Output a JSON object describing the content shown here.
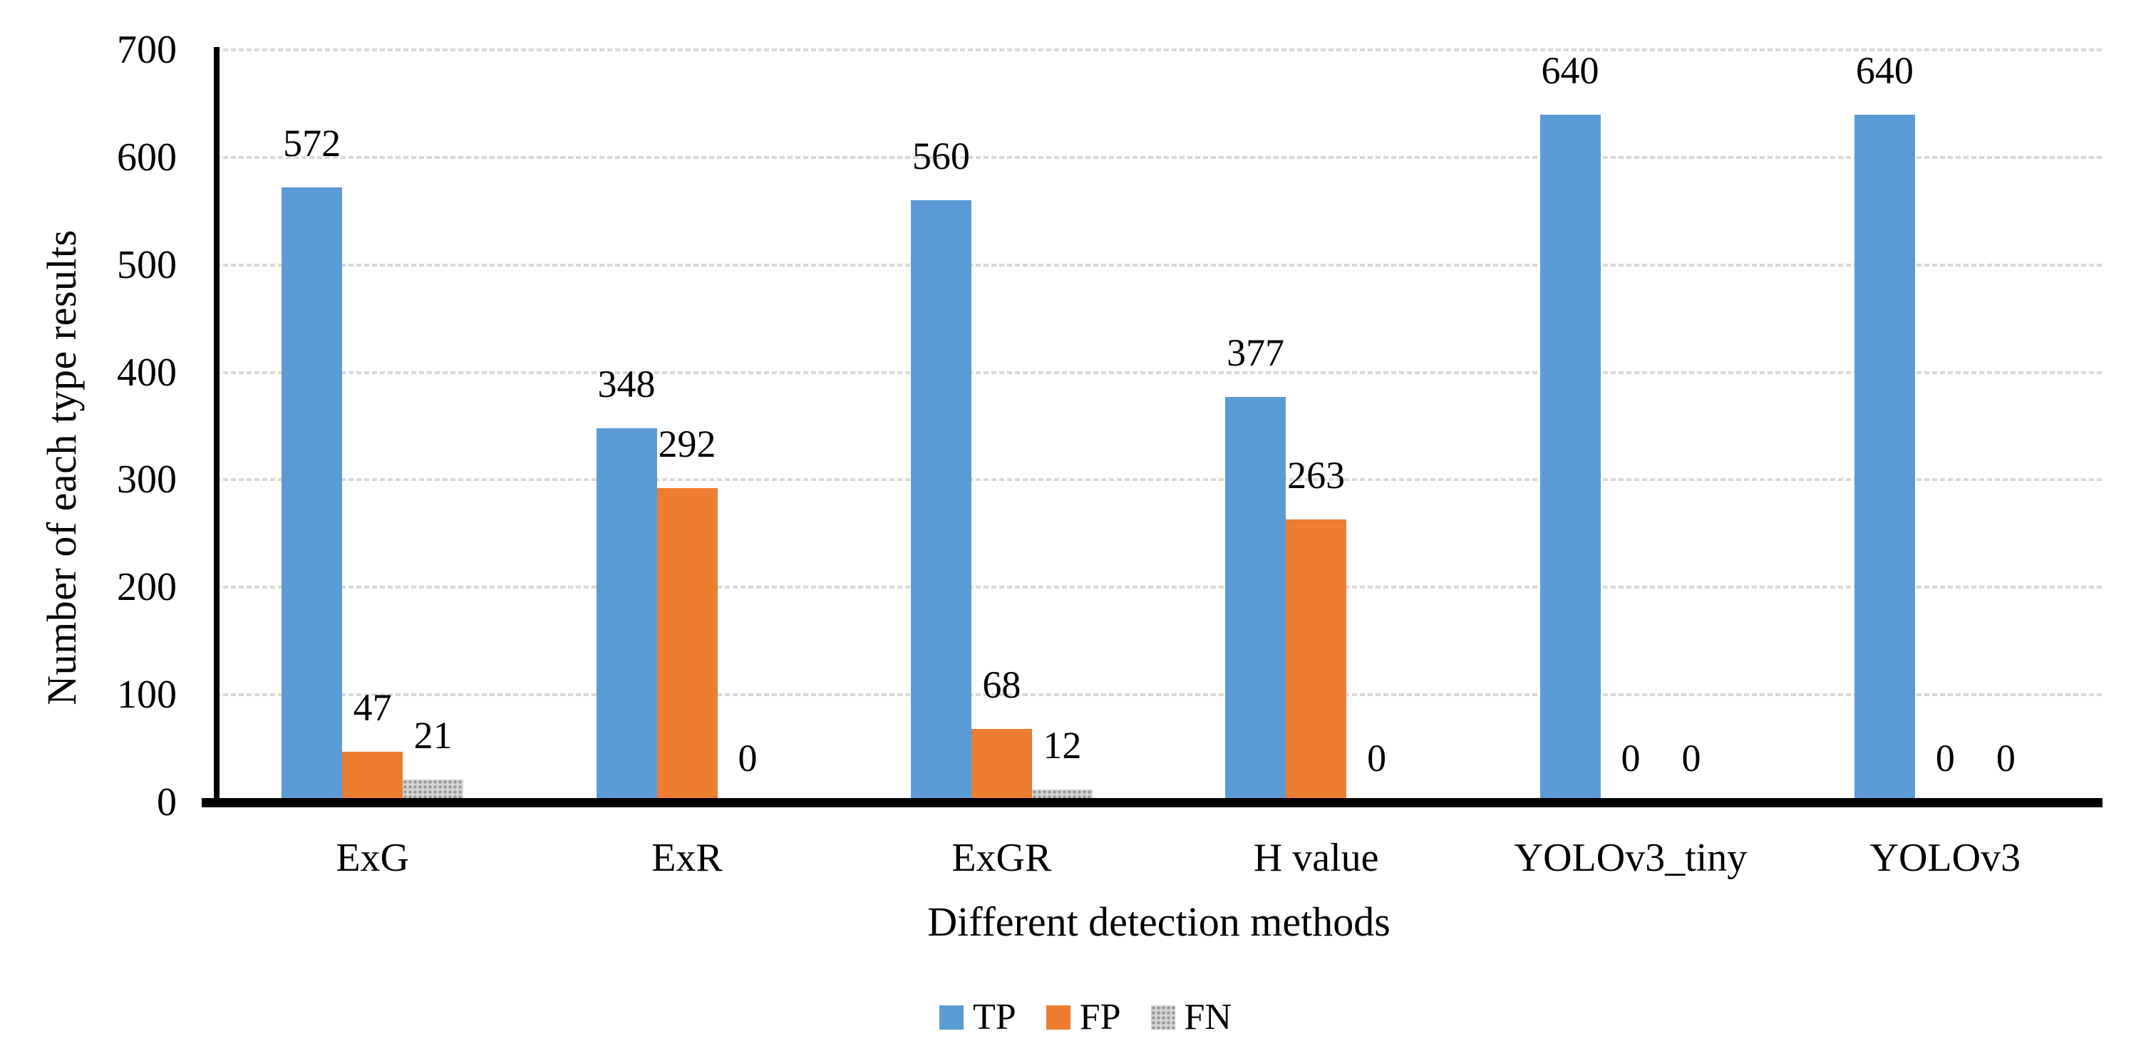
{
  "chart_data": {
    "type": "bar",
    "title": "",
    "categories": [
      "ExG",
      "ExR",
      "ExGR",
      "H value",
      "YOLOv3_tiny",
      "YOLOv3"
    ],
    "series": [
      {
        "name": "TP",
        "color": "#5B9BD5",
        "pattern": "solid",
        "values": [
          572,
          348,
          560,
          377,
          640,
          640
        ]
      },
      {
        "name": "FP",
        "color": "#ED7D31",
        "pattern": "solid",
        "values": [
          47,
          292,
          68,
          263,
          0,
          0
        ]
      },
      {
        "name": "FN",
        "color": "#A8A8A8",
        "pattern": "dots",
        "values": [
          21,
          0,
          12,
          0,
          0,
          0
        ]
      }
    ],
    "xlabel": "Different detection methods",
    "ylabel": "Number of each type results",
    "ylim": [
      0,
      700
    ],
    "yticks": [
      0,
      100,
      200,
      300,
      400,
      500,
      600,
      700
    ],
    "grid": true,
    "legend_position": "bottom",
    "data_labels": true,
    "colors": {
      "gridline": "#D9D9D9",
      "axis": "#000000",
      "text": "#000000",
      "fn_dot": "#979797",
      "fn_base": "#D3D3D3"
    }
  }
}
